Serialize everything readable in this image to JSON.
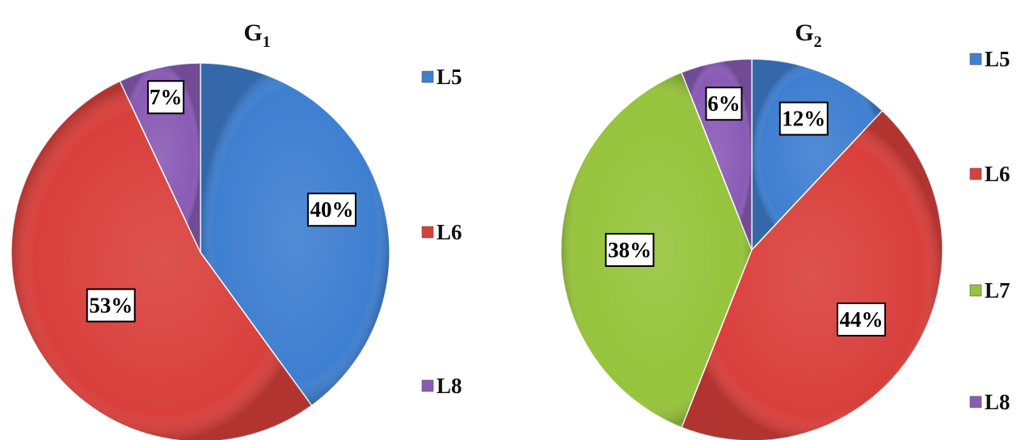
{
  "chart_data": [
    {
      "type": "pie",
      "title": "G",
      "title_subscript": "1",
      "categories": [
        "L5",
        "L6",
        "L8"
      ],
      "values": [
        40,
        53,
        7
      ],
      "data_labels": [
        "40%",
        "53%",
        "7%"
      ],
      "colors": [
        "#3f7fd0",
        "#d9403c",
        "#8a5bb5"
      ],
      "legend": {
        "placement": "right",
        "entries": [
          "L5",
          "L6",
          "L8"
        ]
      }
    },
    {
      "type": "pie",
      "title": "G",
      "title_subscript": "2",
      "categories": [
        "L5",
        "L6",
        "L7",
        "L8"
      ],
      "values": [
        12,
        44,
        38,
        6
      ],
      "data_labels": [
        "12%",
        "44%",
        "38%",
        "6%"
      ],
      "colors": [
        "#3f7fd0",
        "#d9403c",
        "#96c43c",
        "#8a5bb5"
      ],
      "legend": {
        "placement": "right",
        "entries": [
          "L5",
          "L6",
          "L7",
          "L8"
        ]
      }
    }
  ]
}
